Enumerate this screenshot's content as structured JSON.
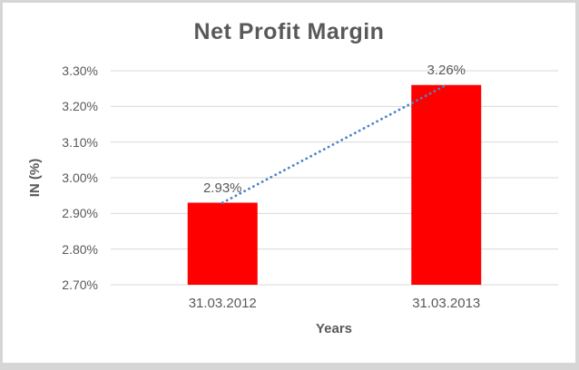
{
  "frame": {
    "border_color": "#d6d6d6",
    "background": "#ffffff"
  },
  "chart_data": {
    "type": "bar",
    "title": "Net Profit Margin",
    "xlabel": "Years",
    "ylabel": "IN (%)",
    "categories": [
      "31.03.2012",
      "31.03.2013"
    ],
    "values": [
      2.93,
      3.26
    ],
    "data_labels": [
      "2.93%",
      "3.26%"
    ],
    "ylim": [
      2.7,
      3.3
    ],
    "ytick_step": 0.1,
    "ytick_labels": [
      "2.70%",
      "2.80%",
      "2.90%",
      "3.00%",
      "3.10%",
      "3.20%",
      "3.30%"
    ],
    "grid": true,
    "legend": false,
    "bar_color": "#FF0000",
    "gridline_color": "#D9D9D9",
    "text_color": "#595959",
    "trendline": {
      "type": "linear",
      "style": "dotted",
      "color": "#4A86C8"
    }
  }
}
